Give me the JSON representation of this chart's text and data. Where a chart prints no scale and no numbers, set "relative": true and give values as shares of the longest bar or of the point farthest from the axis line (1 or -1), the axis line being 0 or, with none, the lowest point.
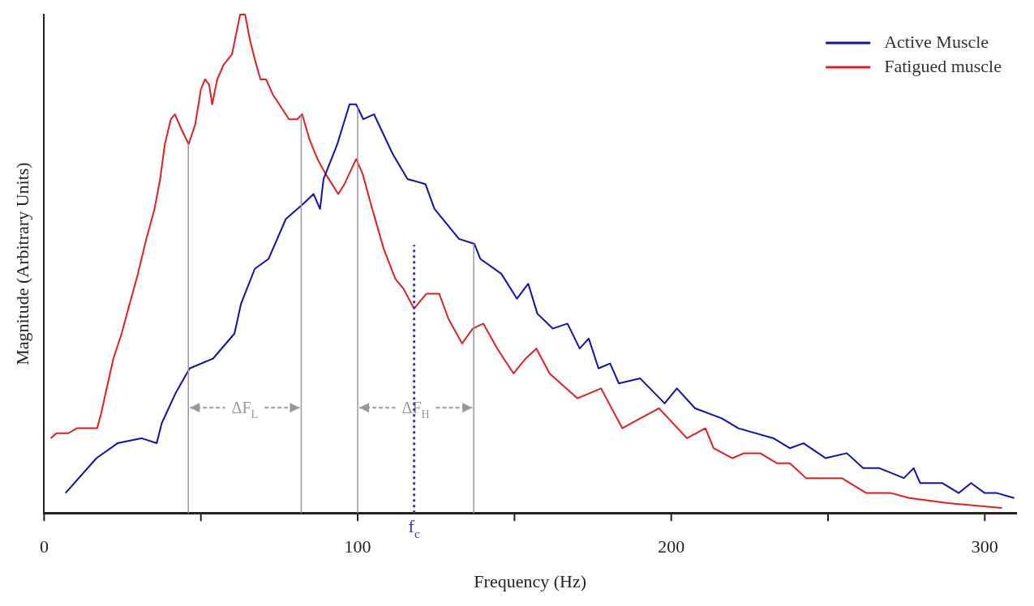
{
  "chart_data": {
    "type": "line",
    "xlabel": "Frequency (Hz)",
    "ylabel": "Magnitude (Arbitrary Units)",
    "relative": true,
    "legend": "top right",
    "grid": false,
    "xlim": [
      0,
      310
    ],
    "xticks": [
      0,
      {
        "value": 50,
        "label": null
      },
      100,
      {
        "value": 150,
        "label": null
      },
      200,
      {
        "value": 250,
        "label": null
      },
      300
    ],
    "series": [
      {
        "name": "Active Muscle",
        "color": "#1010b0",
        "x": [
          6.8,
          16.7,
          23.4,
          31,
          35.9,
          37.5,
          41.9,
          46.4,
          53.9,
          60.7,
          62.8,
          67.2,
          71.6,
          77.1,
          82.6,
          85.9,
          88,
          89.1,
          93.5,
          97.4,
          99.5,
          101.8,
          105.2,
          111.2,
          115.9,
          121.6,
          124.5,
          132.3,
          137.2,
          139.1,
          145.8,
          150.8,
          154.4,
          157.3,
          162.2,
          166.9,
          170.8,
          173.7,
          176.8,
          180.5,
          183.3,
          190.1,
          197.9,
          201.8,
          207.6,
          216.1,
          221.4,
          232.6,
          237.8,
          242.2,
          249.2,
          256,
          261.2,
          266.4,
          274.2,
          277.3,
          279.4,
          286.5,
          291.7,
          295.6,
          300,
          303.9,
          309.4
        ],
        "values": [
          0.04,
          0.11,
          0.14,
          0.15,
          0.14,
          0.18,
          0.24,
          0.29,
          0.31,
          0.36,
          0.42,
          0.49,
          0.51,
          0.59,
          0.62,
          0.64,
          0.61,
          0.67,
          0.74,
          0.82,
          0.82,
          0.79,
          0.8,
          0.72,
          0.67,
          0.66,
          0.61,
          0.55,
          0.54,
          0.51,
          0.48,
          0.43,
          0.46,
          0.4,
          0.37,
          0.38,
          0.33,
          0.35,
          0.29,
          0.3,
          0.26,
          0.27,
          0.22,
          0.25,
          0.21,
          0.19,
          0.17,
          0.15,
          0.13,
          0.14,
          0.11,
          0.12,
          0.09,
          0.09,
          0.07,
          0.09,
          0.06,
          0.06,
          0.04,
          0.06,
          0.04,
          0.04,
          0.03
        ]
      },
      {
        "name": "Fatigued muscle",
        "color": "#e02020",
        "x": [
          2.1,
          3.9,
          7.8,
          10.4,
          16.9,
          18.2,
          20.3,
          22.1,
          24.7,
          27.3,
          29.9,
          32.6,
          35.2,
          37,
          38.5,
          40.4,
          41.7,
          43.8,
          46.1,
          48.2,
          50,
          51.3,
          52.6,
          53.6,
          55.2,
          57.3,
          59.9,
          61.2,
          62.5,
          64.1,
          65.6,
          67.2,
          69,
          70.8,
          72.9,
          75,
          78.1,
          80.7,
          82.3,
          84.6,
          87.2,
          89.8,
          93.8,
          95.8,
          99.5,
          101.6,
          104.2,
          108.3,
          112,
          114.6,
          118,
          121.9,
          126,
          128.9,
          133.3,
          136.7,
          140.1,
          144.5,
          149.7,
          153.6,
          157,
          161.2,
          170.1,
          177.6,
          184.4,
          190.1,
          196.1,
          205,
          210.9,
          213.5,
          219.5,
          223.2,
          228.4,
          233.6,
          237.8,
          243,
          254.4,
          262.2,
          270.1,
          276,
          288.3,
          305.5
        ],
        "values": [
          0.15,
          0.16,
          0.16,
          0.17,
          0.17,
          0.2,
          0.26,
          0.31,
          0.36,
          0.42,
          0.48,
          0.55,
          0.61,
          0.67,
          0.74,
          0.79,
          0.8,
          0.77,
          0.74,
          0.78,
          0.85,
          0.87,
          0.86,
          0.82,
          0.87,
          0.9,
          0.92,
          0.96,
          1,
          1,
          0.95,
          0.91,
          0.87,
          0.87,
          0.84,
          0.82,
          0.79,
          0.79,
          0.8,
          0.75,
          0.71,
          0.68,
          0.64,
          0.66,
          0.71,
          0.68,
          0.62,
          0.53,
          0.47,
          0.45,
          0.41,
          0.44,
          0.44,
          0.39,
          0.34,
          0.37,
          0.38,
          0.33,
          0.28,
          0.31,
          0.33,
          0.28,
          0.23,
          0.25,
          0.17,
          0.19,
          0.21,
          0.15,
          0.17,
          0.13,
          0.11,
          0.12,
          0.12,
          0.1,
          0.1,
          0.07,
          0.07,
          0.04,
          0.04,
          0.03,
          0.02,
          0.01
        ]
      }
    ],
    "annotations": [
      "ΔF$_{L}$",
      "ΔF$_{H}$"
    ],
    "ref_lines": [
      {
        "axis": "x",
        "value": 46,
        "color": "#999999"
      },
      {
        "axis": "x",
        "value": 82,
        "color": "#999999"
      },
      {
        "axis": "x",
        "value": 100,
        "color": "#999999"
      },
      {
        "axis": "x",
        "value": 137,
        "color": "#999999"
      },
      {
        "axis": "x",
        "value": 118,
        "label": "f$_{c}$",
        "color": "#3333cc",
        "line_style": "dotted"
      }
    ]
  }
}
